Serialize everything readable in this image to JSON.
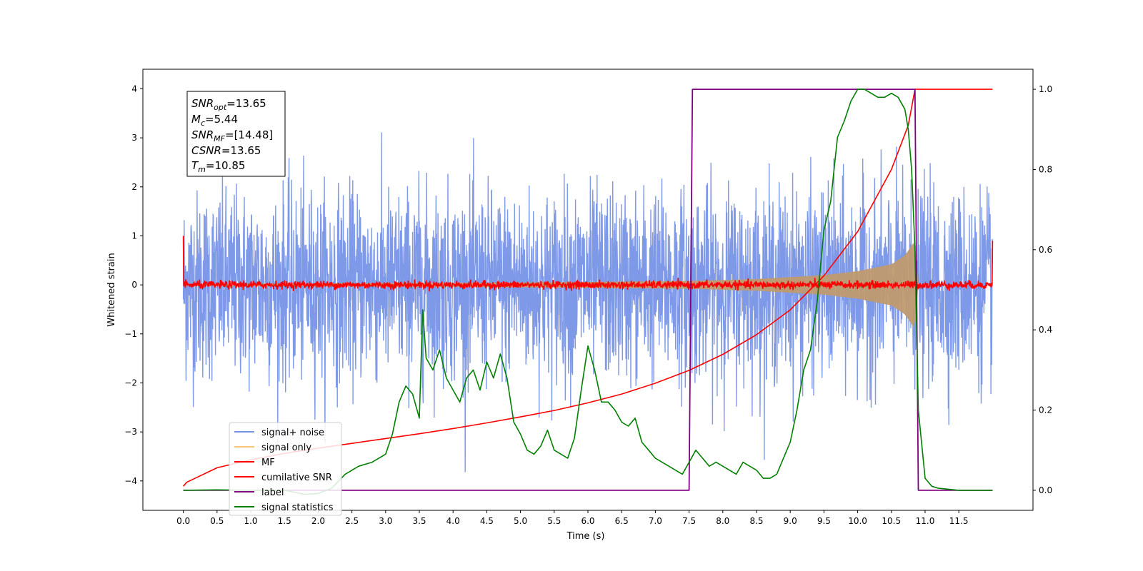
{
  "chart_data": {
    "type": "line",
    "xlabel": "Time (s)",
    "ylabel": "Whitened strain",
    "xlim": [
      -0.6,
      12.6
    ],
    "ylim": [
      -4.6,
      4.4
    ],
    "y2lim": [
      -0.05,
      1.05
    ],
    "x_ticks": [
      "0.0",
      "0.5",
      "1.0",
      "1.5",
      "2.0",
      "2.5",
      "3.0",
      "3.5",
      "4.0",
      "4.5",
      "5.0",
      "5.5",
      "6.0",
      "6.5",
      "7.0",
      "7.5",
      "8.0",
      "8.5",
      "9.0",
      "9.5",
      "10.0",
      "10.5",
      "11.0",
      "11.5"
    ],
    "y_ticks": [
      "4",
      "3",
      "2",
      "1",
      "0",
      "−1",
      "−2",
      "−3",
      "−4"
    ],
    "y2_ticks": [
      "1.0",
      "0.8",
      "0.6",
      "0.4",
      "0.2",
      "0.0"
    ],
    "annotation": {
      "lines": [
        {
          "base": "SNR",
          "sub": "opt",
          "value": "=13.65"
        },
        {
          "base": "M",
          "sub": "c",
          "value": "=5.44"
        },
        {
          "base": "SNR",
          "sub": "MF",
          "value": "=[14.48]"
        },
        {
          "base": "CSNR",
          "sub": "",
          "value": "=13.65"
        },
        {
          "base": "T",
          "sub": "m",
          "value": "=10.85"
        }
      ]
    },
    "legend": {
      "placement": "lower-left",
      "entries": [
        {
          "label": "signal+ noise",
          "color": "#7893e8"
        },
        {
          "label": "signal only",
          "color": "#f7c57a"
        },
        {
          "label": "MF",
          "color": "#ff0000"
        },
        {
          "label": "cumilative SNR",
          "color": "#ff0000"
        },
        {
          "label": "label",
          "color": "#800080"
        },
        {
          "label": "signal statistics",
          "color": "#008000"
        }
      ]
    },
    "series": [
      {
        "name": "signal+ noise",
        "axis": "left",
        "color": "#7893e8",
        "x_range": [
          0.0,
          12.0
        ],
        "rms": 0.95,
        "envelope_max": 3.4
      },
      {
        "name": "signal only",
        "axis": "left",
        "color": "#f7c57a",
        "envelope": {
          "x": [
            0,
            2,
            4,
            6,
            7.5,
            8.5,
            9.5,
            10,
            10.5,
            10.7,
            10.8,
            10.85,
            10.9
          ],
          "y": [
            0.02,
            0.03,
            0.04,
            0.06,
            0.08,
            0.12,
            0.2,
            0.28,
            0.42,
            0.6,
            0.8,
            0.9,
            0.0
          ]
        }
      },
      {
        "name": "MF",
        "axis": "left",
        "color": "#ff0000",
        "x_range": [
          0.0,
          12.0
        ],
        "rms": 0.04,
        "start": 1.0,
        "end": 0.9
      },
      {
        "name": "cumilative SNR",
        "axis": "right",
        "color": "#ff0000",
        "x": [
          0,
          0.05,
          0.5,
          1,
          1.5,
          2,
          2.5,
          3,
          3.5,
          4,
          4.5,
          5,
          5.5,
          6,
          6.5,
          7,
          7.5,
          8,
          8.5,
          9,
          9.5,
          10,
          10.5,
          10.75,
          10.85,
          12.0
        ],
        "y": [
          0.01,
          0.02,
          0.056,
          0.076,
          0.092,
          0.105,
          0.117,
          0.129,
          0.141,
          0.154,
          0.168,
          0.183,
          0.199,
          0.218,
          0.24,
          0.267,
          0.299,
          0.339,
          0.388,
          0.45,
          0.535,
          0.645,
          0.8,
          0.91,
          1.0,
          1.0
        ]
      },
      {
        "name": "label",
        "axis": "right",
        "color": "#800080",
        "x": [
          0.0,
          7.5,
          7.55,
          10.85,
          10.9,
          11.0,
          12.0
        ],
        "y": [
          0.0,
          0.0,
          1.0,
          1.0,
          0.0,
          0.0,
          0.0
        ]
      },
      {
        "name": "signal statistics",
        "axis": "right",
        "color": "#008000",
        "x": [
          0.0,
          0.5,
          1.0,
          1.5,
          1.8,
          2.0,
          2.2,
          2.4,
          2.6,
          2.8,
          3.0,
          3.1,
          3.2,
          3.3,
          3.4,
          3.5,
          3.55,
          3.6,
          3.7,
          3.8,
          3.9,
          4.0,
          4.1,
          4.2,
          4.3,
          4.4,
          4.5,
          4.6,
          4.7,
          4.8,
          4.9,
          5.0,
          5.1,
          5.2,
          5.3,
          5.4,
          5.5,
          5.6,
          5.7,
          5.8,
          5.9,
          6.0,
          6.1,
          6.2,
          6.3,
          6.4,
          6.5,
          6.6,
          6.7,
          6.8,
          6.9,
          7.0,
          7.1,
          7.2,
          7.3,
          7.4,
          7.5,
          7.6,
          7.7,
          7.8,
          7.9,
          8.0,
          8.1,
          8.2,
          8.3,
          8.4,
          8.5,
          8.6,
          8.7,
          8.8,
          8.9,
          9.0,
          9.1,
          9.2,
          9.3,
          9.4,
          9.5,
          9.6,
          9.7,
          9.8,
          9.9,
          10.0,
          10.1,
          10.2,
          10.3,
          10.4,
          10.5,
          10.6,
          10.7,
          10.75,
          10.8,
          10.85,
          10.9,
          11.0,
          11.1,
          11.2,
          11.5,
          12.0
        ],
        "y": [
          0.0,
          0.001,
          0.0,
          0.0,
          -0.01,
          -0.008,
          0.005,
          0.04,
          0.06,
          0.07,
          0.09,
          0.14,
          0.22,
          0.26,
          0.24,
          0.18,
          0.45,
          0.33,
          0.3,
          0.35,
          0.28,
          0.25,
          0.22,
          0.28,
          0.3,
          0.25,
          0.32,
          0.28,
          0.34,
          0.28,
          0.17,
          0.14,
          0.1,
          0.09,
          0.11,
          0.15,
          0.1,
          0.09,
          0.08,
          0.13,
          0.25,
          0.36,
          0.3,
          0.22,
          0.22,
          0.2,
          0.17,
          0.16,
          0.18,
          0.12,
          0.1,
          0.08,
          0.07,
          0.06,
          0.05,
          0.04,
          0.07,
          0.1,
          0.08,
          0.06,
          0.07,
          0.06,
          0.05,
          0.04,
          0.07,
          0.06,
          0.05,
          0.03,
          0.03,
          0.04,
          0.08,
          0.12,
          0.2,
          0.3,
          0.35,
          0.47,
          0.65,
          0.72,
          0.88,
          0.92,
          0.97,
          1.0,
          1.0,
          0.99,
          0.98,
          0.98,
          0.99,
          0.98,
          0.95,
          0.9,
          0.8,
          0.6,
          0.2,
          0.03,
          0.01,
          0.005,
          0.0,
          0.0
        ]
      }
    ]
  }
}
